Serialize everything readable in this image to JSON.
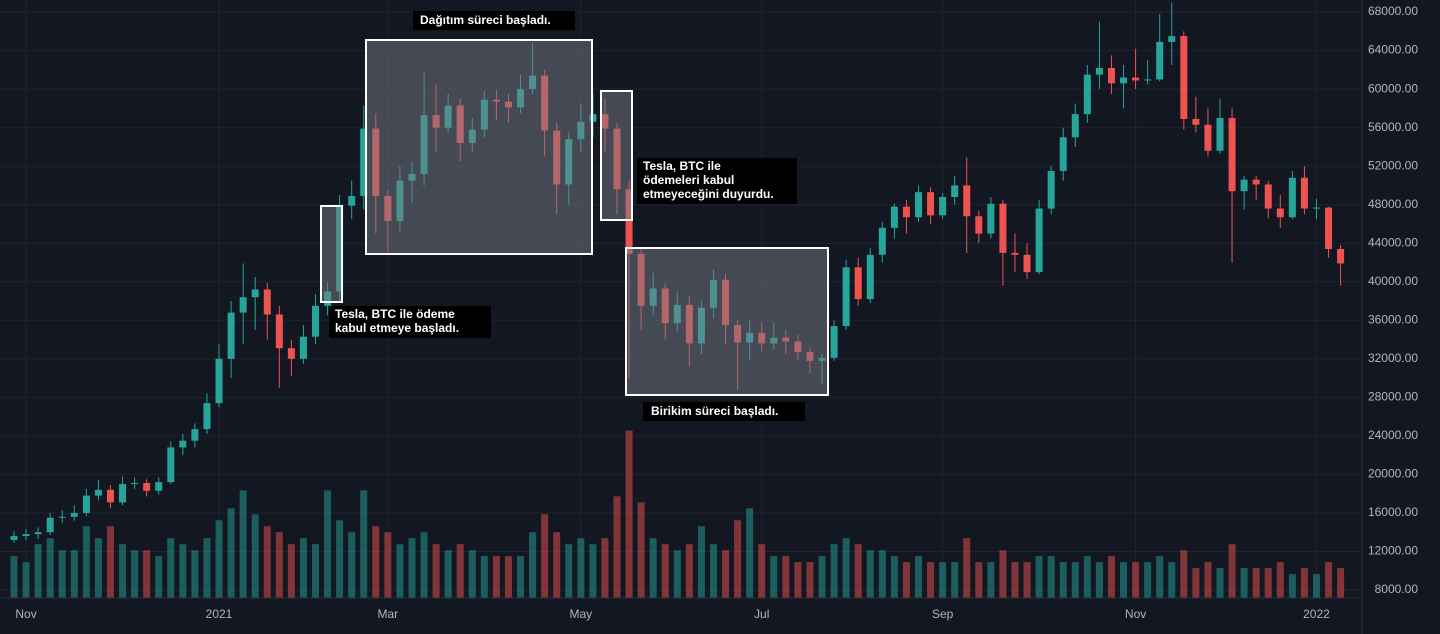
{
  "chart_data": {
    "type": "candlestick",
    "categories": [
      null,
      "Nov",
      null,
      null,
      null,
      null,
      null,
      null,
      null,
      null,
      null,
      null,
      null,
      null,
      null,
      null,
      null,
      "2021",
      null,
      null,
      null,
      null,
      null,
      null,
      null,
      null,
      null,
      null,
      null,
      null,
      null,
      "Mar",
      null,
      null,
      null,
      null,
      null,
      null,
      null,
      null,
      null,
      null,
      null,
      null,
      null,
      null,
      null,
      "May",
      null,
      null,
      null,
      null,
      null,
      null,
      null,
      null,
      null,
      null,
      null,
      null,
      null,
      null,
      "Jul",
      null,
      null,
      null,
      null,
      null,
      null,
      null,
      null,
      null,
      null,
      null,
      null,
      null,
      null,
      "Sep",
      null,
      null,
      null,
      null,
      null,
      null,
      null,
      null,
      null,
      null,
      null,
      null,
      null,
      null,
      null,
      "Nov",
      null,
      null,
      null,
      null,
      null,
      null,
      null,
      null,
      null,
      null,
      null,
      null,
      null,
      null,
      "2022",
      null,
      null
    ],
    "open": [
      13200,
      13600,
      13800,
      14000,
      15500,
      15600,
      16000,
      17800,
      18400,
      17100,
      19000,
      19100,
      18300,
      19200,
      22800,
      23500,
      24700,
      27400,
      32000,
      36800,
      38400,
      39200,
      36600,
      33100,
      32000,
      34300,
      37500,
      39000,
      47900,
      48900,
      55900,
      48900,
      46300,
      50500,
      51200,
      57300,
      56000,
      58300,
      54400,
      55800,
      58900,
      58700,
      58100,
      60000,
      61400,
      55700,
      50100,
      54800,
      56600,
      57400,
      55900,
      49600,
      42900,
      37500,
      39300,
      35700,
      37600,
      33600,
      37300,
      40200,
      35500,
      33700,
      34700,
      33600,
      34200,
      33800,
      32700,
      31800,
      32100,
      35400,
      41500,
      38200,
      42800,
      45600,
      47800,
      46700,
      49300,
      46900,
      48800,
      50000,
      46800,
      45000,
      48100,
      43000,
      42800,
      41000,
      47600,
      51500,
      55000,
      57400,
      61500,
      62200,
      60600,
      61200,
      60900,
      61000,
      64900,
      65500,
      56900,
      56300,
      53600,
      57000,
      49400,
      50600,
      50100,
      47600,
      46700,
      50800,
      47600,
      47700,
      43400
    ],
    "high": [
      14100,
      14300,
      14500,
      16000,
      16300,
      16800,
      18500,
      19400,
      18900,
      19800,
      19700,
      19500,
      19700,
      23400,
      24200,
      25300,
      28400,
      33500,
      38000,
      41900,
      40500,
      39900,
      37500,
      34000,
      35500,
      38700,
      40000,
      49000,
      50500,
      58300,
      57500,
      49500,
      52000,
      52500,
      61700,
      60500,
      59500,
      59000,
      57000,
      59800,
      59900,
      59500,
      61500,
      64800,
      62000,
      56500,
      55500,
      58500,
      59500,
      59000,
      56500,
      50500,
      43500,
      40900,
      39800,
      39000,
      38500,
      38000,
      41300,
      40800,
      36000,
      36000,
      35800,
      35800,
      35000,
      34500,
      33200,
      32500,
      36000,
      42300,
      42500,
      43500,
      46200,
      48100,
      48500,
      50000,
      49800,
      49200,
      51000,
      52900,
      47400,
      48800,
      48500,
      45000,
      44000,
      48500,
      52000,
      56000,
      58500,
      62500,
      67000,
      63500,
      62500,
      64200,
      63000,
      67800,
      69000,
      66000,
      59200,
      58000,
      59000,
      58000,
      51000,
      51000,
      50500,
      49000,
      51500,
      52000,
      48600,
      47800,
      43800
    ],
    "low": [
      12900,
      13200,
      13300,
      13700,
      15000,
      15200,
      15700,
      17300,
      16500,
      16800,
      18500,
      17700,
      17900,
      19000,
      22000,
      22800,
      24200,
      27000,
      30000,
      33500,
      35000,
      34000,
      29000,
      30200,
      31500,
      33500,
      36500,
      38000,
      46500,
      47500,
      45000,
      43000,
      45200,
      48200,
      50000,
      53500,
      55500,
      52500,
      53500,
      55000,
      56800,
      56500,
      57500,
      59500,
      53000,
      47000,
      48000,
      53500,
      55000,
      53500,
      47000,
      30000,
      35000,
      36500,
      34000,
      34800,
      31200,
      32500,
      36200,
      33500,
      28800,
      31800,
      32800,
      33000,
      32500,
      31800,
      30500,
      29300,
      31800,
      35000,
      37500,
      37800,
      42000,
      44500,
      45000,
      46200,
      46000,
      46500,
      48000,
      43000,
      44000,
      44500,
      39600,
      41000,
      40300,
      40800,
      47000,
      50500,
      54000,
      56500,
      60000,
      59500,
      58000,
      60000,
      60500,
      60800,
      62500,
      55800,
      55500,
      53000,
      53300,
      42000,
      47500,
      48500,
      46600,
      45600,
      46500,
      47000,
      46500,
      42500,
      39600
    ],
    "close": [
      13600,
      13800,
      14000,
      15500,
      15600,
      16000,
      17800,
      18400,
      17100,
      19000,
      19100,
      18300,
      19200,
      22800,
      23500,
      24700,
      27400,
      32000,
      36800,
      38400,
      39200,
      36600,
      33100,
      32000,
      34300,
      37500,
      39000,
      47900,
      48900,
      55900,
      48900,
      46300,
      50500,
      51200,
      57300,
      56000,
      58300,
      54400,
      55800,
      58900,
      58700,
      58100,
      60000,
      61400,
      55700,
      50100,
      54800,
      56600,
      57400,
      55900,
      49600,
      42900,
      37500,
      39300,
      35700,
      37600,
      33600,
      37300,
      40200,
      35500,
      33700,
      34700,
      33600,
      34200,
      33800,
      32700,
      31800,
      32100,
      35400,
      41500,
      38200,
      42800,
      45600,
      47800,
      46700,
      49300,
      46900,
      48800,
      50000,
      46800,
      45000,
      48100,
      43000,
      42800,
      41000,
      47600,
      51500,
      55000,
      57400,
      61500,
      62200,
      60600,
      61200,
      60900,
      61000,
      64900,
      65500,
      56900,
      56300,
      53600,
      57000,
      49400,
      50600,
      50100,
      47600,
      46700,
      50800,
      47600,
      47700,
      43400,
      41900
    ],
    "volume": [
      7,
      6,
      9,
      10,
      8,
      8,
      12,
      10,
      12,
      9,
      8,
      8,
      7,
      10,
      9,
      8,
      10,
      13,
      15,
      18,
      14,
      12,
      11,
      9,
      10,
      9,
      18,
      13,
      11,
      18,
      12,
      11,
      9,
      10,
      11,
      9,
      8,
      9,
      8,
      7,
      7,
      7,
      7,
      11,
      14,
      11,
      9,
      10,
      9,
      10,
      17,
      28,
      16,
      10,
      9,
      8,
      9,
      12,
      9,
      8,
      13,
      15,
      9,
      7,
      7,
      6,
      6,
      7,
      9,
      10,
      9,
      8,
      8,
      7,
      6,
      7,
      6,
      6,
      6,
      10,
      6,
      6,
      8,
      6,
      6,
      7,
      7,
      6,
      6,
      7,
      6,
      7,
      6,
      6,
      6,
      7,
      6,
      8,
      5,
      6,
      5,
      9,
      5,
      5,
      5,
      6,
      4,
      5,
      4,
      6,
      5
    ],
    "up_color": "#26a69a",
    "down_color": "#ef5350",
    "ylim": [
      7170,
      69250
    ],
    "yticks": [
      {
        "value": 8000,
        "label": "8000.00"
      },
      {
        "value": 12000,
        "label": "12000.00"
      },
      {
        "value": 16000,
        "label": "16000.00"
      },
      {
        "value": 20000,
        "label": "20000.00"
      },
      {
        "value": 24000,
        "label": "24000.00"
      },
      {
        "value": 28000,
        "label": "28000.00"
      },
      {
        "value": 32000,
        "label": "32000.00"
      },
      {
        "value": 36000,
        "label": "36000.00"
      },
      {
        "value": 40000,
        "label": "40000.00"
      },
      {
        "value": 44000,
        "label": "44000.00"
      },
      {
        "value": 48000,
        "label": "48000.00"
      },
      {
        "value": 52000,
        "label": "52000.00"
      },
      {
        "value": 56000,
        "label": "56000.00"
      },
      {
        "value": 60000,
        "label": "60000.00"
      },
      {
        "value": 64000,
        "label": "64000.00"
      },
      {
        "value": 68000,
        "label": "68000.00"
      }
    ],
    "y2lim": [
      0,
      100
    ],
    "grid": true,
    "annotations": [
      {
        "lines": [
          "Dağıtım süreci başladı."
        ]
      },
      {
        "lines": [
          "Tesla, BTC ile ödeme",
          "kabul etmeye başladı."
        ]
      },
      {
        "lines": [
          "Tesla, BTC ile",
          "ödemeleri kabul",
          "etmeyeceğini duyurdu."
        ]
      },
      {
        "lines": [
          "Birikim süreci başladı."
        ]
      }
    ]
  }
}
